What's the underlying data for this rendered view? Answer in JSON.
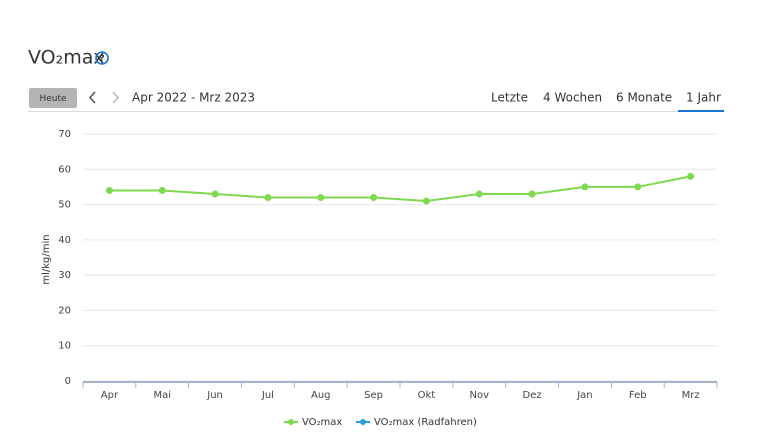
{
  "header": {
    "title": "VO₂max"
  },
  "controls": {
    "today": "Heute",
    "range": "Apr 2022 - Mrz 2023",
    "tabs": [
      "Letzte",
      "4 Wochen",
      "6 Monate",
      "1 Jahr"
    ],
    "active_tab": 3
  },
  "chart_data": {
    "type": "line",
    "y_label": "ml/kg/min",
    "categories": [
      "Apr",
      "Mai",
      "Jun",
      "Jul",
      "Aug",
      "Sep",
      "Okt",
      "Nov",
      "Dez",
      "Jan",
      "Feb",
      "Mrz"
    ],
    "series": [
      {
        "name": "VO₂max",
        "color": "#7ed94f",
        "values": [
          54,
          54,
          53,
          52,
          52,
          52,
          51,
          53,
          53,
          55,
          55,
          58
        ]
      },
      {
        "name": "VO₂max (Radfahren)",
        "color": "#2d9ee0",
        "values": [
          null,
          null,
          null,
          null,
          null,
          null,
          null,
          null,
          null,
          null,
          null,
          null
        ]
      }
    ],
    "ylim": [
      0,
      70
    ],
    "yticks": [
      0,
      10,
      20,
      30,
      40,
      50,
      60,
      70
    ],
    "grid": true,
    "legend": "bottom"
  }
}
